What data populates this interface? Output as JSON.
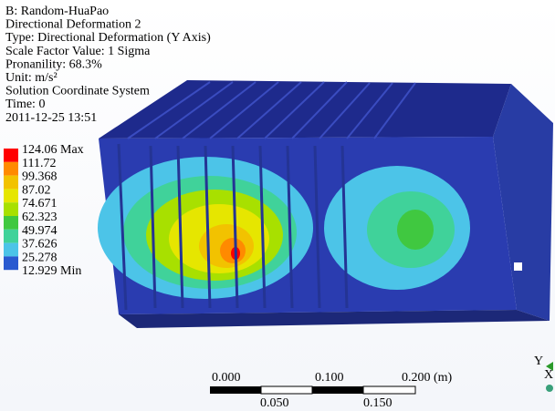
{
  "header": {
    "lines": [
      "B: Random-HuaPao",
      "Directional Deformation 2",
      "Type: Directional Deformation (Y Axis)",
      "Scale Factor Value: 1 Sigma",
      "Pronanility: 68.3%",
      "Unit: m/s²",
      "Solution Coordinate System",
      "Time: 0",
      "2011-12-25 13:51"
    ]
  },
  "legend": {
    "entries": [
      "124.06 Max",
      "111.72",
      "99.368",
      "87.02",
      "74.671",
      "62.323",
      "49.974",
      "37.626",
      "25.278",
      "12.929 Min"
    ],
    "colors": [
      "#ff0000",
      "#ff8a00",
      "#f2c200",
      "#e6e600",
      "#a8e000",
      "#40c840",
      "#40d29a",
      "#4cc4e8",
      "#2a5ad0"
    ]
  },
  "scale_bar": {
    "top_labels": [
      "0.000",
      "0.100",
      "0.200 (m)"
    ],
    "bottom_labels": [
      "0.050",
      "0.150"
    ]
  },
  "triad": {
    "y_label": "Y",
    "x_label": "X"
  }
}
